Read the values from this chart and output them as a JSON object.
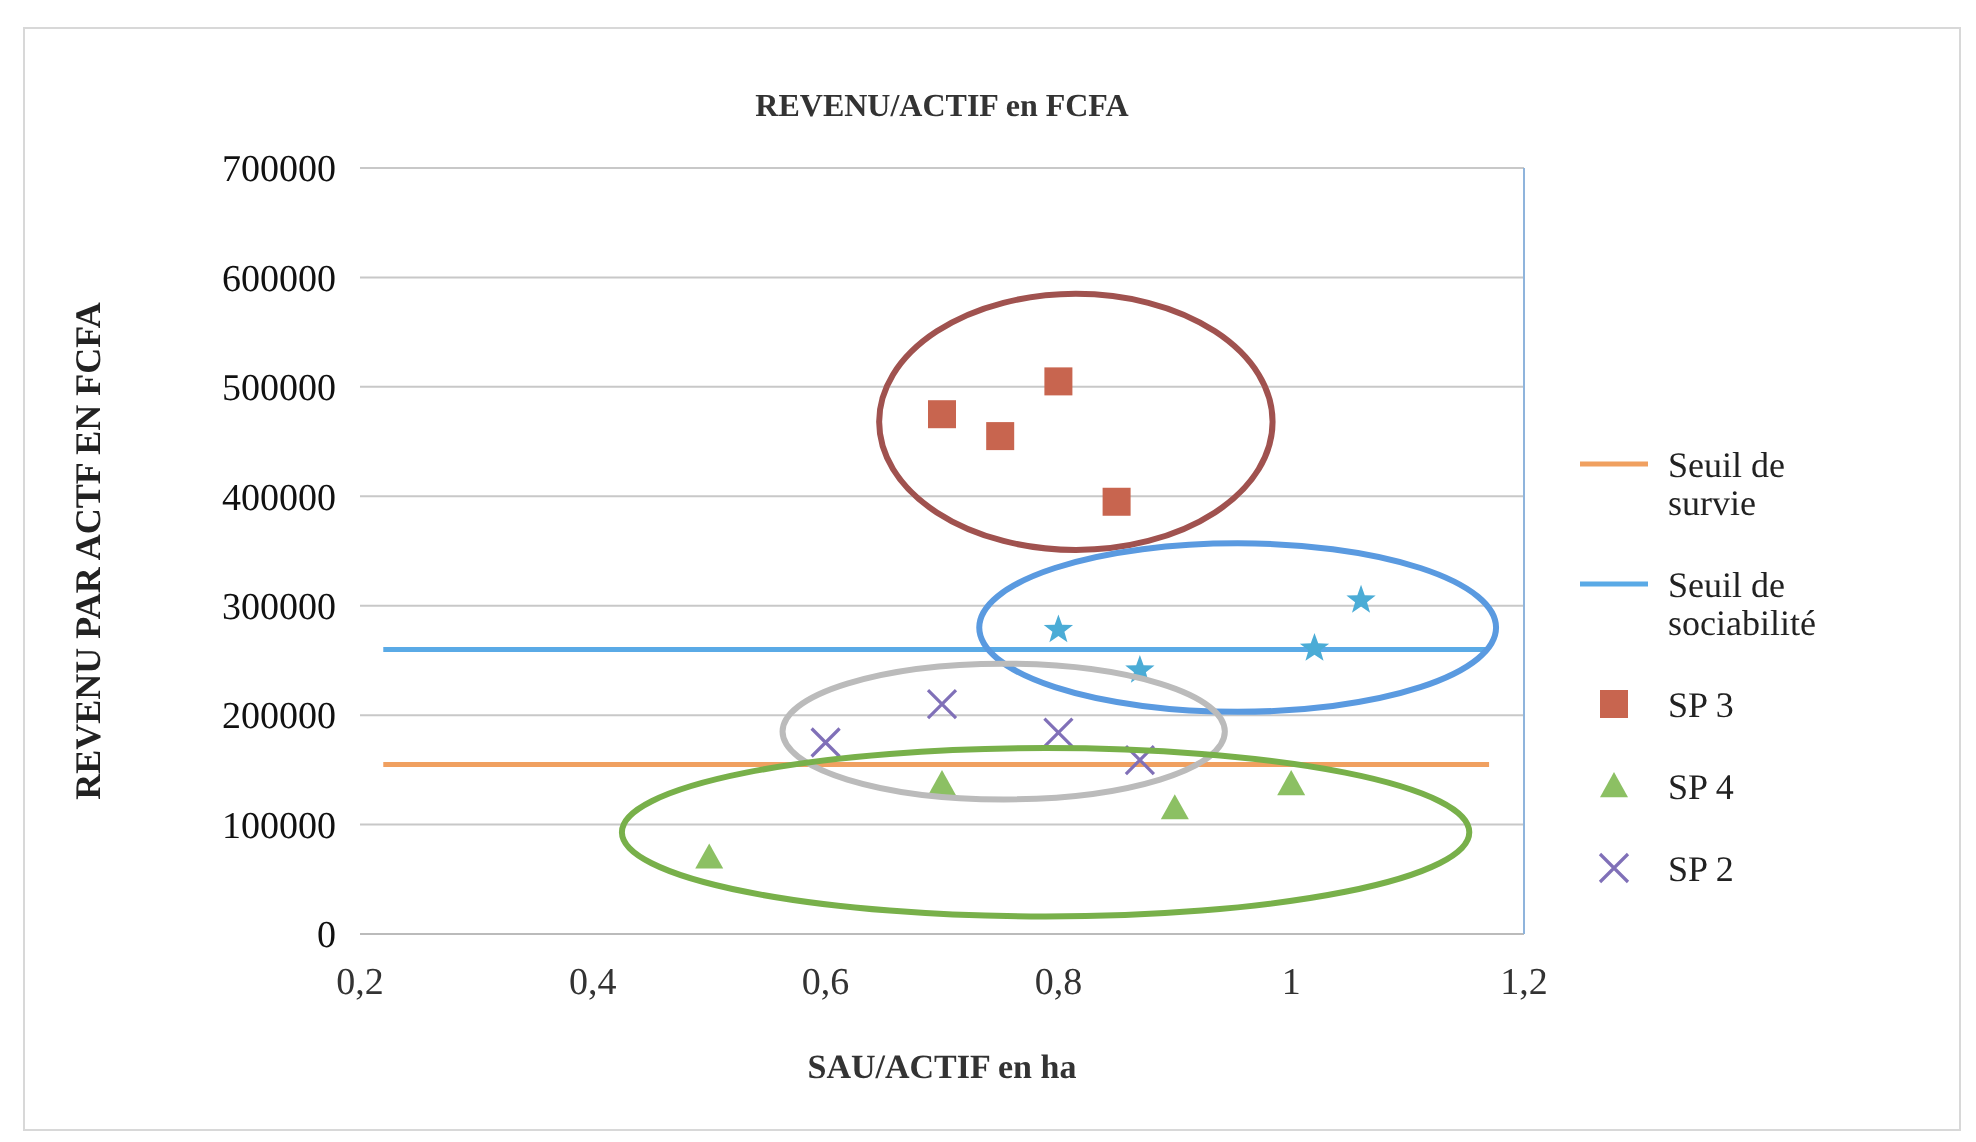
{
  "chart_data": {
    "type": "scatter",
    "title": "REVENU/ACTIF en FCFA",
    "xlabel": "SAU/ACTIF en ha",
    "ylabel": "REVENU PAR ACTF EN FCFA",
    "xlim": [
      0.2,
      1.2
    ],
    "xticks": [
      {
        "value": 0.2,
        "label": "0,2"
      },
      {
        "value": 0.4,
        "label": "0,4"
      },
      {
        "value": 0.6,
        "label": "0,6"
      },
      {
        "value": 0.8,
        "label": "0,8"
      },
      {
        "value": 1,
        "label": "1"
      },
      {
        "value": 1.2,
        "label": "1,2"
      }
    ],
    "ylim": [
      0,
      700000
    ],
    "yticks": [
      0,
      100000,
      200000,
      300000,
      400000,
      500000,
      600000,
      700000
    ],
    "grid": "y",
    "legend": "right",
    "series": [
      {
        "name": "Seuil de survie",
        "type": "line",
        "marker": "none",
        "color": "#f0a060",
        "x": [
          0.22,
          1.17
        ],
        "values": [
          155000,
          155000
        ]
      },
      {
        "name": "Seuil de sociabilité",
        "type": "line",
        "marker": "none",
        "color": "#5aaae6",
        "x": [
          0.22,
          1.17
        ],
        "values": [
          260000,
          260000
        ]
      },
      {
        "name": "SP 3",
        "marker": "square",
        "color": "#c8654f",
        "x": [
          0.7,
          0.75,
          0.8,
          0.85
        ],
        "values": [
          475000,
          455000,
          505000,
          395000
        ]
      },
      {
        "name": "SP 4",
        "marker": "triangle",
        "color": "#8cc063",
        "x": [
          0.5,
          0.7,
          0.9,
          1.0
        ],
        "values": [
          70000,
          137000,
          115000,
          137000
        ]
      },
      {
        "name": "SP 2",
        "marker": "cross",
        "color": "#8070b8",
        "x": [
          0.6,
          0.7,
          0.8,
          0.87
        ],
        "values": [
          175000,
          210000,
          184000,
          159000
        ]
      },
      {
        "marker": "star",
        "color": "#4bacd6",
        "x": [
          0.8,
          0.87,
          1.02,
          1.06
        ],
        "values": [
          278000,
          241000,
          261000,
          305000
        ]
      }
    ]
  }
}
